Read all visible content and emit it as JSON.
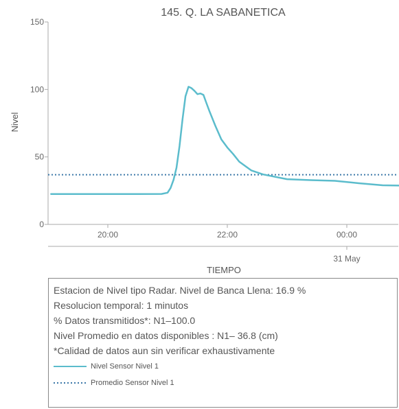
{
  "chart_data": {
    "type": "line",
    "title": "145. Q. LA SABANETICA",
    "xlabel": "TIEMPO",
    "ylabel": "Nivel",
    "ylim": [
      0,
      150
    ],
    "yticks": [
      "0",
      "50",
      "100",
      "150"
    ],
    "xticks": [
      "20:00",
      "22:00",
      "00:00"
    ],
    "date_label": "31 May",
    "grid": false,
    "series": [
      {
        "name": "Nivel Sensor Nivel 1",
        "color": "#5bbccc",
        "style": "solid",
        "x_hours": [
          19.05,
          19.5,
          20.0,
          20.5,
          20.9,
          21.0,
          21.05,
          21.1,
          21.15,
          21.2,
          21.25,
          21.3,
          21.35,
          21.4,
          21.45,
          21.5,
          21.55,
          21.6,
          21.65,
          21.7,
          21.8,
          21.9,
          22.0,
          22.1,
          22.2,
          22.4,
          22.6,
          23.0,
          23.4,
          23.8,
          24.2,
          24.6,
          25.0,
          25.2
        ],
        "values": [
          22.5,
          22.5,
          22.5,
          22.5,
          22.6,
          23.5,
          27,
          33,
          42,
          58,
          78,
          95,
          102,
          101,
          99,
          96.5,
          97,
          96,
          90,
          84,
          73,
          63,
          57,
          52,
          46.5,
          40,
          37,
          33.5,
          32.8,
          32.3,
          30.5,
          29,
          28.7,
          28.5
        ]
      },
      {
        "name": "Promedio Sensor Nivel 1",
        "color": "#3a77a8",
        "style": "dotted",
        "values": [
          36.8
        ]
      }
    ]
  },
  "info": {
    "line1": "Estacion de Nivel tipo Radar. Nivel de Banca Llena: 16.9 %",
    "line2": "Resolucion temporal: 1 minutos",
    "line3": "% Datos transmitidos*: N1–100.0",
    "line4": "Nivel Promedio en datos disponibles : N1– 36.8 (cm)",
    "line5": "*Calidad de datos aun sin verificar exhaustivamente"
  },
  "legend": [
    {
      "label": "Nivel Sensor Nivel 1",
      "color": "#5bbccc",
      "style": "solid"
    },
    {
      "label": "Promedio Sensor Nivel 1",
      "color": "#3a77a8",
      "style": "dotted"
    }
  ]
}
